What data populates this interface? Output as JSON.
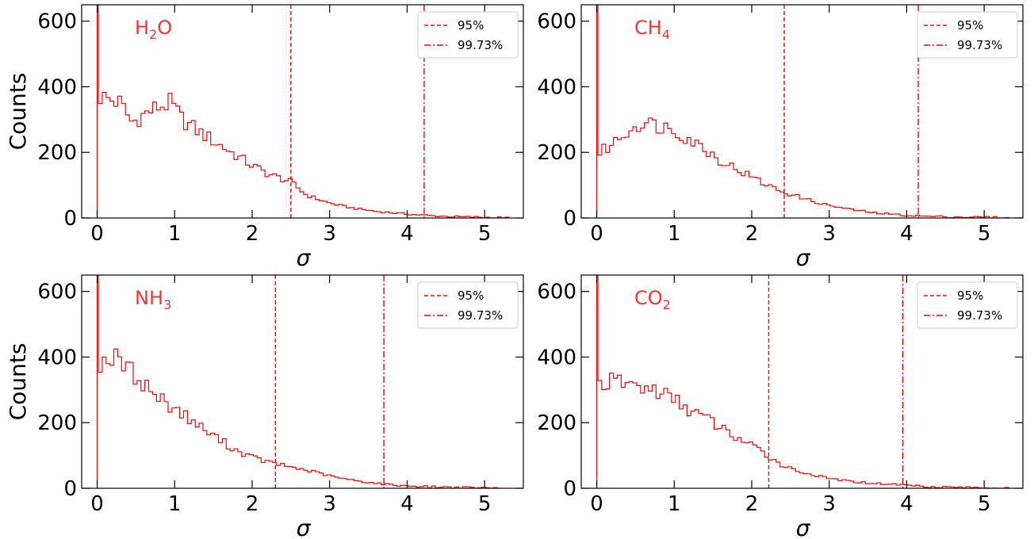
{
  "figure": {
    "ylabel": "Counts",
    "xlabel": "σ",
    "xticks": [
      "0",
      "1",
      "2",
      "3",
      "4",
      "5"
    ],
    "yticks": [
      "0",
      "200",
      "400",
      "600"
    ],
    "legend": {
      "dashed_label": "95%",
      "dashdot_label": "99.73%",
      "placement": "upper-right"
    },
    "line_color": "#ff0000",
    "label_color": "#ff3030"
  },
  "chart_data": [
    {
      "type": "histogram",
      "species": {
        "main": "H",
        "sub": "2",
        "tail": "O"
      },
      "xlim": [
        -0.2,
        5.5
      ],
      "ylim": [
        0,
        650
      ],
      "bin_width": 0.05,
      "spike": 650,
      "p95": 2.5,
      "p9973": 4.22,
      "curve": [
        [
          0.05,
          370
        ],
        [
          0.3,
          350
        ],
        [
          0.45,
          290
        ],
        [
          0.6,
          315
        ],
        [
          0.8,
          340
        ],
        [
          0.95,
          350
        ],
        [
          1.1,
          300
        ],
        [
          1.3,
          265
        ],
        [
          1.5,
          235
        ],
        [
          1.8,
          190
        ],
        [
          2.0,
          160
        ],
        [
          2.2,
          135
        ],
        [
          2.5,
          110
        ],
        [
          2.7,
          70
        ],
        [
          3.0,
          45
        ],
        [
          3.3,
          30
        ],
        [
          3.6,
          20
        ],
        [
          4.0,
          12
        ],
        [
          4.3,
          7
        ],
        [
          4.6,
          4
        ],
        [
          5.0,
          2
        ],
        [
          5.3,
          0
        ]
      ]
    },
    {
      "type": "histogram",
      "species": {
        "main": "CH",
        "sub": "4",
        "tail": ""
      },
      "xlim": [
        -0.2,
        5.5
      ],
      "ylim": [
        0,
        650
      ],
      "bin_width": 0.05,
      "spike": 650,
      "p95": 2.42,
      "p9973": 4.15,
      "curve": [
        [
          0.05,
          200
        ],
        [
          0.2,
          225
        ],
        [
          0.4,
          265
        ],
        [
          0.55,
          290
        ],
        [
          0.75,
          285
        ],
        [
          1.0,
          270
        ],
        [
          1.2,
          240
        ],
        [
          1.4,
          210
        ],
        [
          1.6,
          175
        ],
        [
          1.8,
          150
        ],
        [
          2.0,
          125
        ],
        [
          2.2,
          100
        ],
        [
          2.4,
          80
        ],
        [
          2.6,
          65
        ],
        [
          2.8,
          50
        ],
        [
          3.0,
          38
        ],
        [
          3.3,
          25
        ],
        [
          3.6,
          15
        ],
        [
          4.0,
          8
        ],
        [
          4.3,
          5
        ],
        [
          4.7,
          3
        ],
        [
          5.1,
          2
        ],
        [
          5.3,
          0
        ]
      ]
    },
    {
      "type": "histogram",
      "species": {
        "main": "NH",
        "sub": "3",
        "tail": ""
      },
      "xlim": [
        -0.2,
        5.5
      ],
      "ylim": [
        0,
        650
      ],
      "bin_width": 0.05,
      "spike": 650,
      "p95": 2.3,
      "p9973": 3.7,
      "curve": [
        [
          0.05,
          385
        ],
        [
          0.2,
          400
        ],
        [
          0.35,
          375
        ],
        [
          0.6,
          320
        ],
        [
          0.8,
          275
        ],
        [
          1.0,
          245
        ],
        [
          1.2,
          210
        ],
        [
          1.4,
          175
        ],
        [
          1.6,
          145
        ],
        [
          1.8,
          115
        ],
        [
          2.0,
          95
        ],
        [
          2.2,
          80
        ],
        [
          2.4,
          70
        ],
        [
          2.6,
          60
        ],
        [
          2.8,
          50
        ],
        [
          3.0,
          38
        ],
        [
          3.2,
          28
        ],
        [
          3.5,
          18
        ],
        [
          3.8,
          10
        ],
        [
          4.2,
          5
        ],
        [
          4.6,
          3
        ],
        [
          5.2,
          0
        ]
      ]
    },
    {
      "type": "histogram",
      "species": {
        "main": "CO",
        "sub": "2",
        "tail": ""
      },
      "xlim": [
        -0.2,
        5.5
      ],
      "ylim": [
        0,
        650
      ],
      "bin_width": 0.05,
      "spike": 650,
      "p95": 2.22,
      "p9973": 3.95,
      "curve": [
        [
          0.05,
          320
        ],
        [
          0.3,
          325
        ],
        [
          0.55,
          310
        ],
        [
          0.8,
          295
        ],
        [
          1.0,
          270
        ],
        [
          1.2,
          240
        ],
        [
          1.4,
          215
        ],
        [
          1.6,
          185
        ],
        [
          1.8,
          155
        ],
        [
          2.0,
          130
        ],
        [
          2.2,
          100
        ],
        [
          2.4,
          70
        ],
        [
          2.6,
          52
        ],
        [
          2.8,
          40
        ],
        [
          3.0,
          30
        ],
        [
          3.3,
          20
        ],
        [
          3.6,
          15
        ],
        [
          4.0,
          10
        ],
        [
          4.3,
          5
        ],
        [
          4.7,
          3
        ],
        [
          5.3,
          0
        ]
      ]
    }
  ]
}
